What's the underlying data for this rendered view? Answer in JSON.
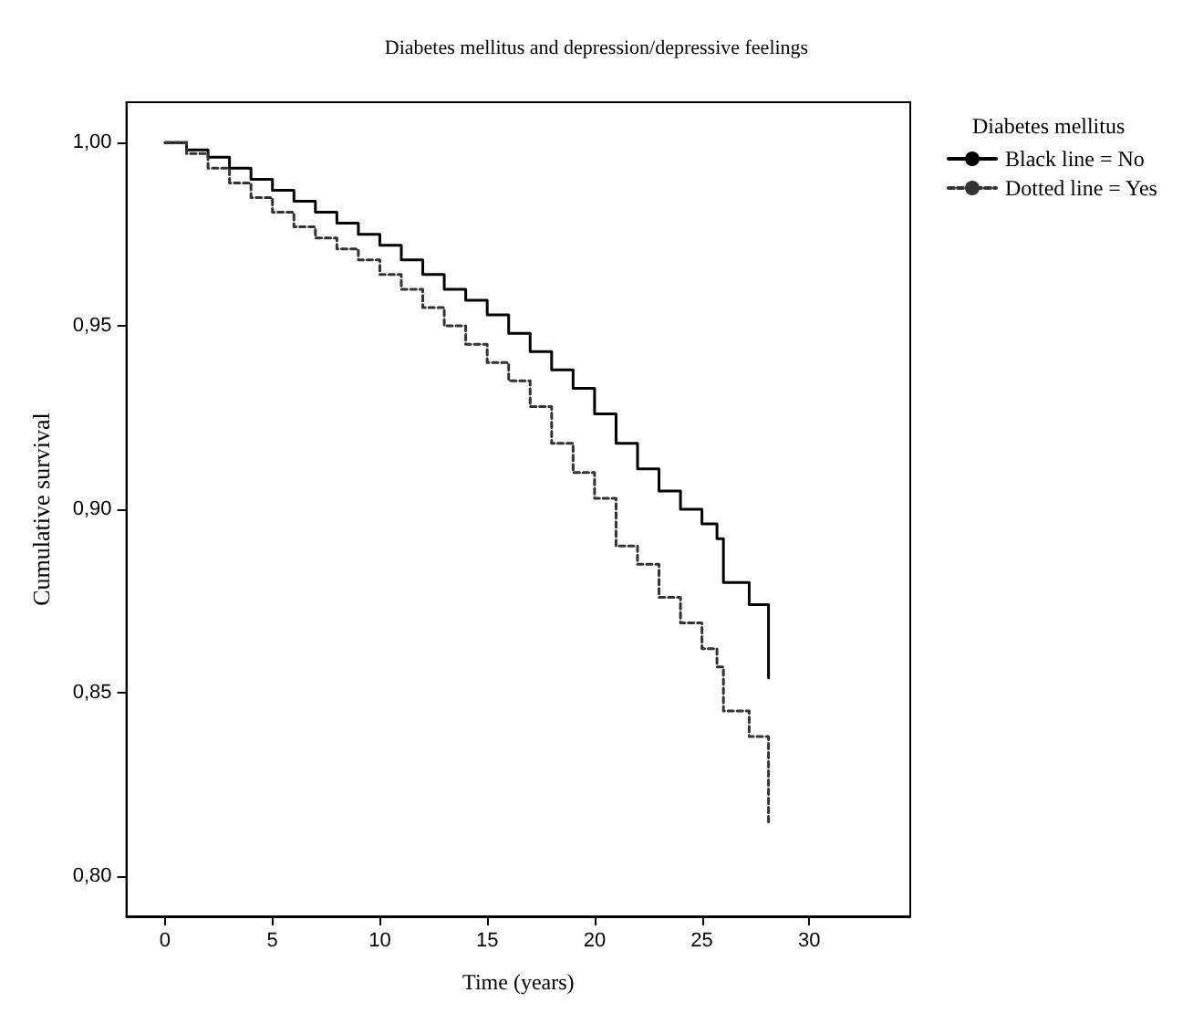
{
  "chart_data": {
    "type": "step",
    "title": "Diabetes mellitus and depression/depressive feelings",
    "xlabel": "Time (years)",
    "ylabel": "Cumulative survival",
    "legend_title": "Diabetes mellitus",
    "legend": "right",
    "xlim": [
      -1.8,
      34.7
    ],
    "xticks": [
      0,
      5,
      10,
      15,
      20,
      25,
      30
    ],
    "ylim": [
      0.789,
      1.011
    ],
    "yticks": [
      {
        "value": 0.8,
        "label": "0,80"
      },
      {
        "value": 0.85,
        "label": "0,85"
      },
      {
        "value": 0.9,
        "label": "0,90"
      },
      {
        "value": 0.95,
        "label": "0,95"
      },
      {
        "value": 1.0,
        "label": "1,00"
      }
    ],
    "grid": false,
    "marker": "none",
    "series": [
      {
        "name": "Black line = No",
        "color": "#000000",
        "line_style": "solid",
        "x": [
          0,
          1,
          2,
          3,
          4,
          5,
          6,
          7,
          8,
          9,
          10,
          11,
          12,
          13,
          14,
          15,
          16,
          17,
          18,
          19,
          20,
          21,
          22,
          23,
          24,
          25,
          25.7,
          26,
          27.2,
          28.1
        ],
        "values": [
          1.0,
          0.998,
          0.996,
          0.993,
          0.99,
          0.987,
          0.984,
          0.981,
          0.978,
          0.975,
          0.972,
          0.968,
          0.964,
          0.96,
          0.957,
          0.953,
          0.948,
          0.943,
          0.938,
          0.933,
          0.926,
          0.918,
          0.911,
          0.905,
          0.9,
          0.896,
          0.892,
          0.88,
          0.874,
          0.854
        ]
      },
      {
        "name": "Dotted line = Yes",
        "color": "#333333",
        "line_style": "dashed",
        "x": [
          0,
          1,
          2,
          3,
          4,
          5,
          6,
          7,
          8,
          9,
          10,
          11,
          12,
          13,
          14,
          15,
          16,
          17,
          18,
          19,
          20,
          21,
          22,
          23,
          24,
          25,
          25.7,
          26,
          27.2,
          28.1
        ],
        "values": [
          1.0,
          0.997,
          0.993,
          0.989,
          0.985,
          0.981,
          0.977,
          0.974,
          0.971,
          0.968,
          0.964,
          0.96,
          0.955,
          0.95,
          0.945,
          0.94,
          0.935,
          0.928,
          0.918,
          0.91,
          0.903,
          0.89,
          0.885,
          0.876,
          0.869,
          0.862,
          0.857,
          0.845,
          0.838,
          0.814
        ]
      }
    ]
  }
}
